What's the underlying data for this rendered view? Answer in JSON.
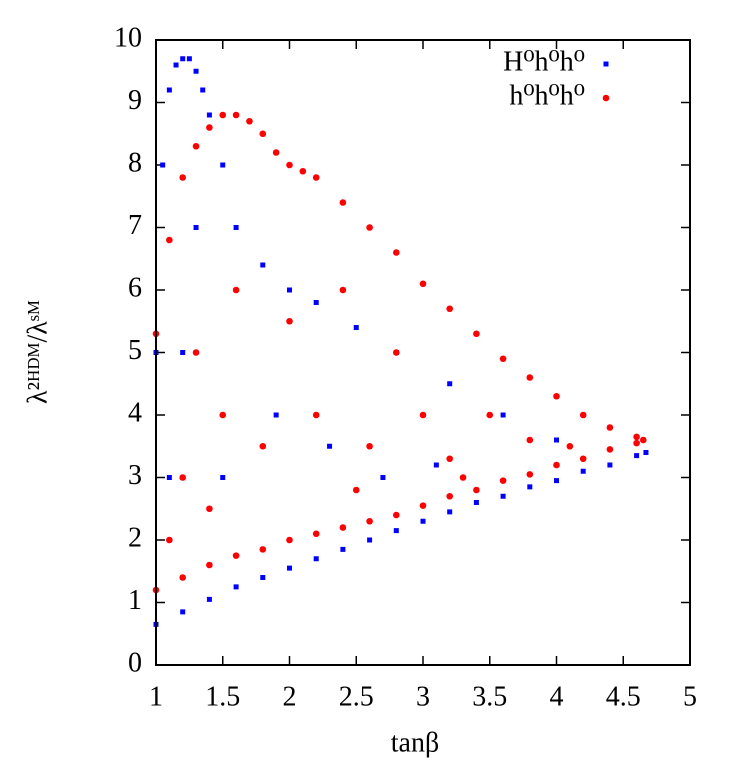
{
  "chart_data": {
    "type": "scatter",
    "x_label": "tanβ",
    "y_label": "λ²ᴴᴰᴹ/λˢᴹ",
    "xlim": [
      1,
      5
    ],
    "xticks": [
      1,
      {
        "value": 1.5,
        "label": "1.5"
      },
      2,
      {
        "value": 2.5,
        "label": "2.5"
      },
      3,
      {
        "value": 3.5,
        "label": "3.5"
      },
      4,
      {
        "value": 4.5,
        "label": "4.5"
      },
      5
    ],
    "ylim": [
      0,
      10
    ],
    "yticks": [
      0,
      1,
      2,
      3,
      4,
      5,
      6,
      7,
      8,
      9,
      10
    ],
    "legend": "top-right",
    "series": [
      {
        "name": "H⁰h⁰h⁰",
        "color": "#0000ff",
        "marker": "square",
        "x": [
          1.0,
          1.2,
          1.4,
          1.6,
          1.8,
          2.0,
          2.2,
          2.4,
          2.6,
          2.8,
          3.0,
          3.2,
          3.4,
          3.6,
          3.8,
          4.0,
          4.2,
          4.4,
          4.6,
          4.67,
          1.0,
          1.05,
          1.1,
          1.15,
          1.2,
          1.25,
          1.3,
          1.35,
          1.4,
          1.5,
          1.6,
          1.8,
          2.0,
          2.2,
          2.5,
          2.8,
          3.2,
          3.6,
          4.0,
          1.1,
          1.2,
          1.3,
          1.5,
          1.9,
          2.3,
          2.7,
          3.1
        ],
        "values": [
          0.65,
          0.85,
          1.05,
          1.25,
          1.4,
          1.55,
          1.7,
          1.85,
          2.0,
          2.15,
          2.3,
          2.45,
          2.6,
          2.7,
          2.85,
          2.95,
          3.1,
          3.2,
          3.35,
          3.4,
          5.0,
          8.0,
          9.2,
          9.6,
          9.7,
          9.7,
          9.5,
          9.2,
          8.8,
          8.0,
          7.0,
          6.4,
          6.0,
          5.8,
          5.4,
          5.0,
          4.5,
          4.0,
          3.6,
          3.0,
          5.0,
          7.0,
          3.0,
          4.0,
          3.5,
          3.0,
          3.2
        ]
      },
      {
        "name": "h⁰h⁰h⁰",
        "color": "#ff0000",
        "marker": "star",
        "x": [
          1.0,
          1.2,
          1.4,
          1.6,
          1.8,
          2.0,
          2.2,
          2.4,
          2.6,
          2.8,
          3.0,
          3.2,
          3.4,
          3.6,
          3.8,
          4.0,
          4.2,
          4.4,
          4.6,
          4.65,
          1.0,
          1.1,
          1.2,
          1.3,
          1.4,
          1.5,
          1.6,
          1.7,
          1.8,
          1.9,
          2.0,
          2.1,
          2.2,
          2.4,
          2.6,
          2.8,
          3.0,
          3.2,
          3.4,
          3.6,
          3.8,
          4.0,
          4.2,
          4.4,
          4.6,
          1.2,
          1.3,
          1.5,
          1.6,
          1.8,
          2.0,
          2.2,
          2.4,
          2.6,
          2.8,
          3.0,
          3.2,
          3.5,
          3.8,
          4.1,
          1.1,
          1.4,
          2.5,
          3.3
        ],
        "values": [
          1.2,
          1.4,
          1.6,
          1.75,
          1.85,
          2.0,
          2.1,
          2.2,
          2.3,
          2.4,
          2.55,
          2.7,
          2.8,
          2.95,
          3.05,
          3.2,
          3.3,
          3.45,
          3.55,
          3.6,
          5.3,
          6.8,
          7.8,
          8.3,
          8.6,
          8.8,
          8.8,
          8.7,
          8.5,
          8.2,
          8.0,
          7.9,
          7.8,
          7.4,
          7.0,
          6.6,
          6.1,
          5.7,
          5.3,
          4.9,
          4.6,
          4.3,
          4.0,
          3.8,
          3.65,
          3.0,
          5.0,
          4.0,
          6.0,
          3.5,
          5.5,
          4.0,
          6.0,
          3.5,
          5.0,
          4.0,
          3.3,
          4.0,
          3.6,
          3.5,
          2.0,
          2.5,
          2.8,
          3.0
        ]
      }
    ]
  }
}
